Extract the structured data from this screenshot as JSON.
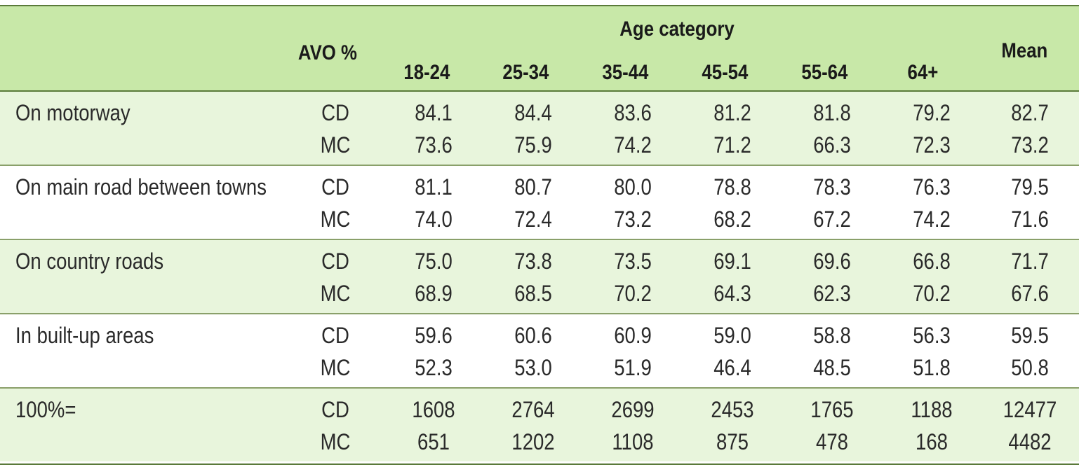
{
  "header": {
    "avo_label": "AVO %",
    "age_label": "Age category",
    "mean_label": "Mean",
    "age_columns": [
      "18-24",
      "25-34",
      "35-44",
      "45-54",
      "55-64",
      "64+"
    ]
  },
  "rows": [
    {
      "label": "On motorway",
      "shaded": true,
      "lines": [
        {
          "type": "CD",
          "values": [
            "84.1",
            "84.4",
            "83.6",
            "81.2",
            "81.8",
            "79.2"
          ],
          "mean": "82.7"
        },
        {
          "type": "MC",
          "values": [
            "73.6",
            "75.9",
            "74.2",
            "71.2",
            "66.3",
            "72.3"
          ],
          "mean": "73.2"
        }
      ]
    },
    {
      "label": "On main road between towns",
      "shaded": false,
      "lines": [
        {
          "type": "CD",
          "values": [
            "81.1",
            "80.7",
            "80.0",
            "78.8",
            "78.3",
            "76.3"
          ],
          "mean": "79.5"
        },
        {
          "type": "MC",
          "values": [
            "74.0",
            "72.4",
            "73.2",
            "68.2",
            "67.2",
            "74.2"
          ],
          "mean": "71.6"
        }
      ]
    },
    {
      "label": "On country roads",
      "shaded": true,
      "lines": [
        {
          "type": "CD",
          "values": [
            "75.0",
            "73.8",
            "73.5",
            "69.1",
            "69.6",
            "66.8"
          ],
          "mean": "71.7"
        },
        {
          "type": "MC",
          "values": [
            "68.9",
            "68.5",
            "70.2",
            "64.3",
            "62.3",
            "70.2"
          ],
          "mean": "67.6"
        }
      ]
    },
    {
      "label": "In built-up areas",
      "shaded": false,
      "lines": [
        {
          "type": "CD",
          "values": [
            "59.6",
            "60.6",
            "60.9",
            "59.0",
            "58.8",
            "56.3"
          ],
          "mean": "59.5"
        },
        {
          "type": "MC",
          "values": [
            "52.3",
            "53.0",
            "51.9",
            "46.4",
            "48.5",
            "51.8"
          ],
          "mean": "50.8"
        }
      ]
    },
    {
      "label": "100%=",
      "shaded": true,
      "lines": [
        {
          "type": "CD",
          "values": [
            "1608",
            "2764",
            "2699",
            "2453",
            "1765",
            "1188"
          ],
          "mean": "12477"
        },
        {
          "type": "MC",
          "values": [
            "651",
            "1202",
            "1108",
            "875",
            "478",
            "168"
          ],
          "mean": "4482"
        }
      ]
    }
  ],
  "colors": {
    "header_bg": "#c8e8a8",
    "shade_bg": "#e8f5dc",
    "rule": "#5a7a3a"
  }
}
